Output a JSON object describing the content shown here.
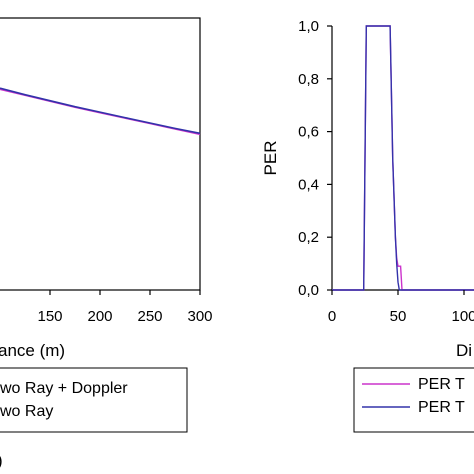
{
  "chart_data": [
    {
      "type": "line",
      "xlabel": "ance (m)",
      "ylabel": "",
      "xlim": [
        100,
        300
      ],
      "x_ticks": [
        150,
        200,
        250,
        300
      ],
      "x_tick_labels": [
        "150",
        "200",
        "250",
        "300"
      ],
      "grid": false,
      "legend_position": "bottom",
      "series": [
        {
          "name": "wo Ray + Doppler",
          "color": "#cc33cc",
          "x": [
            100,
            125,
            150,
            175,
            200,
            225,
            250,
            275,
            300
          ],
          "y": [
            0.369,
            0.358,
            0.347,
            0.336,
            0.326,
            0.316,
            0.306,
            0.296,
            0.286
          ]
        },
        {
          "name": "wo Ray",
          "color": "#3333aa",
          "x": [
            100,
            125,
            150,
            175,
            200,
            225,
            250,
            275,
            300
          ],
          "y": [
            0.371,
            0.359,
            0.348,
            0.337,
            0.327,
            0.317,
            0.307,
            0.297,
            0.288
          ]
        }
      ],
      "corner_label": ")"
    },
    {
      "type": "line",
      "xlabel": "Di",
      "ylabel": "PER",
      "xlim": [
        0,
        140
      ],
      "ylim": [
        0,
        1
      ],
      "x_ticks": [
        0,
        50,
        100
      ],
      "x_tick_labels": [
        "0",
        "50",
        "100"
      ],
      "y_ticks": [
        0,
        0.2,
        0.4,
        0.6,
        0.8,
        1.0
      ],
      "y_tick_labels": [
        "0,0",
        "0,2",
        "0,4",
        "0,6",
        "0,8",
        "1,0"
      ],
      "grid": false,
      "legend_position": "bottom",
      "series": [
        {
          "name": "PER T",
          "color": "#cc33cc",
          "x": [
            0,
            24,
            26,
            44,
            46,
            48,
            49,
            50,
            51,
            52,
            53,
            140
          ],
          "y": [
            0,
            0,
            1,
            1,
            0.5,
            0.2,
            0.12,
            0.09,
            0.09,
            0.09,
            0,
            0
          ]
        },
        {
          "name": "PER T",
          "color": "#3333aa",
          "x": [
            0,
            24,
            26,
            44,
            46,
            48,
            49,
            50,
            51,
            140
          ],
          "y": [
            0,
            0,
            1,
            1,
            0.5,
            0.2,
            0.1,
            0.03,
            0,
            0
          ]
        }
      ]
    }
  ]
}
